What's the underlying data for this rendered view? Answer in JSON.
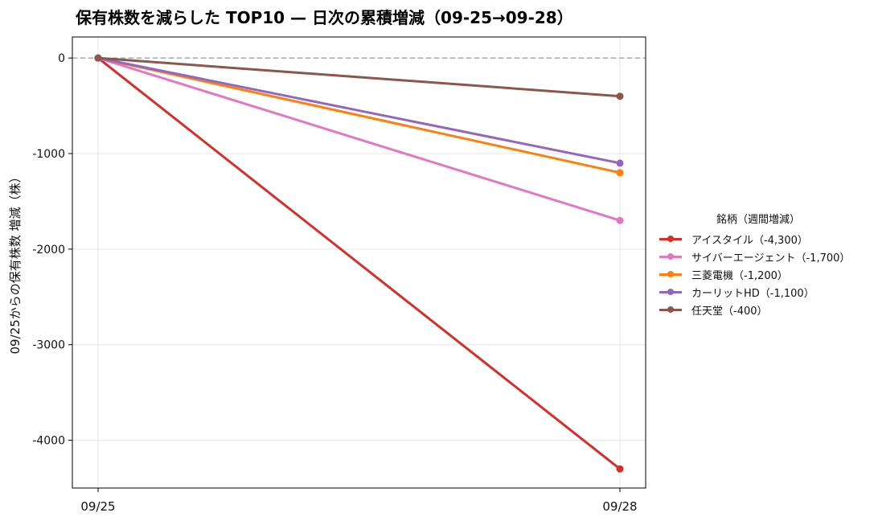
{
  "chart_data": {
    "type": "line",
    "title": "保有株数を減らした TOP10 — 日次の累積増減（09-25→09-28）",
    "xlabel": "",
    "ylabel": "09/25からの保有株数 増減（株）",
    "categories": [
      "09/25",
      "09/28"
    ],
    "ylim": [
      -4500,
      220
    ],
    "yticks": [
      0,
      -1000,
      -2000,
      -3000,
      -4000
    ],
    "grid": true,
    "zero_line": true,
    "legend_title": "銘柄（週間増減）",
    "legend_position": "right",
    "series": [
      {
        "name": "アイスタイル（-4,300）",
        "color": "#d62f2a",
        "values": [
          0,
          -4300
        ]
      },
      {
        "name": "サイバーエージェント（-1,700）",
        "color": "#e377c2",
        "values": [
          0,
          -1700
        ]
      },
      {
        "name": "三菱電機（-1,200）",
        "color": "#ff7f0e",
        "values": [
          0,
          -1200
        ]
      },
      {
        "name": "カーリットHD（-1,100）",
        "color": "#9467bd",
        "values": [
          0,
          -1100
        ]
      },
      {
        "name": "任天堂（-400）",
        "color": "#8c564b",
        "values": [
          0,
          -400
        ]
      }
    ]
  }
}
